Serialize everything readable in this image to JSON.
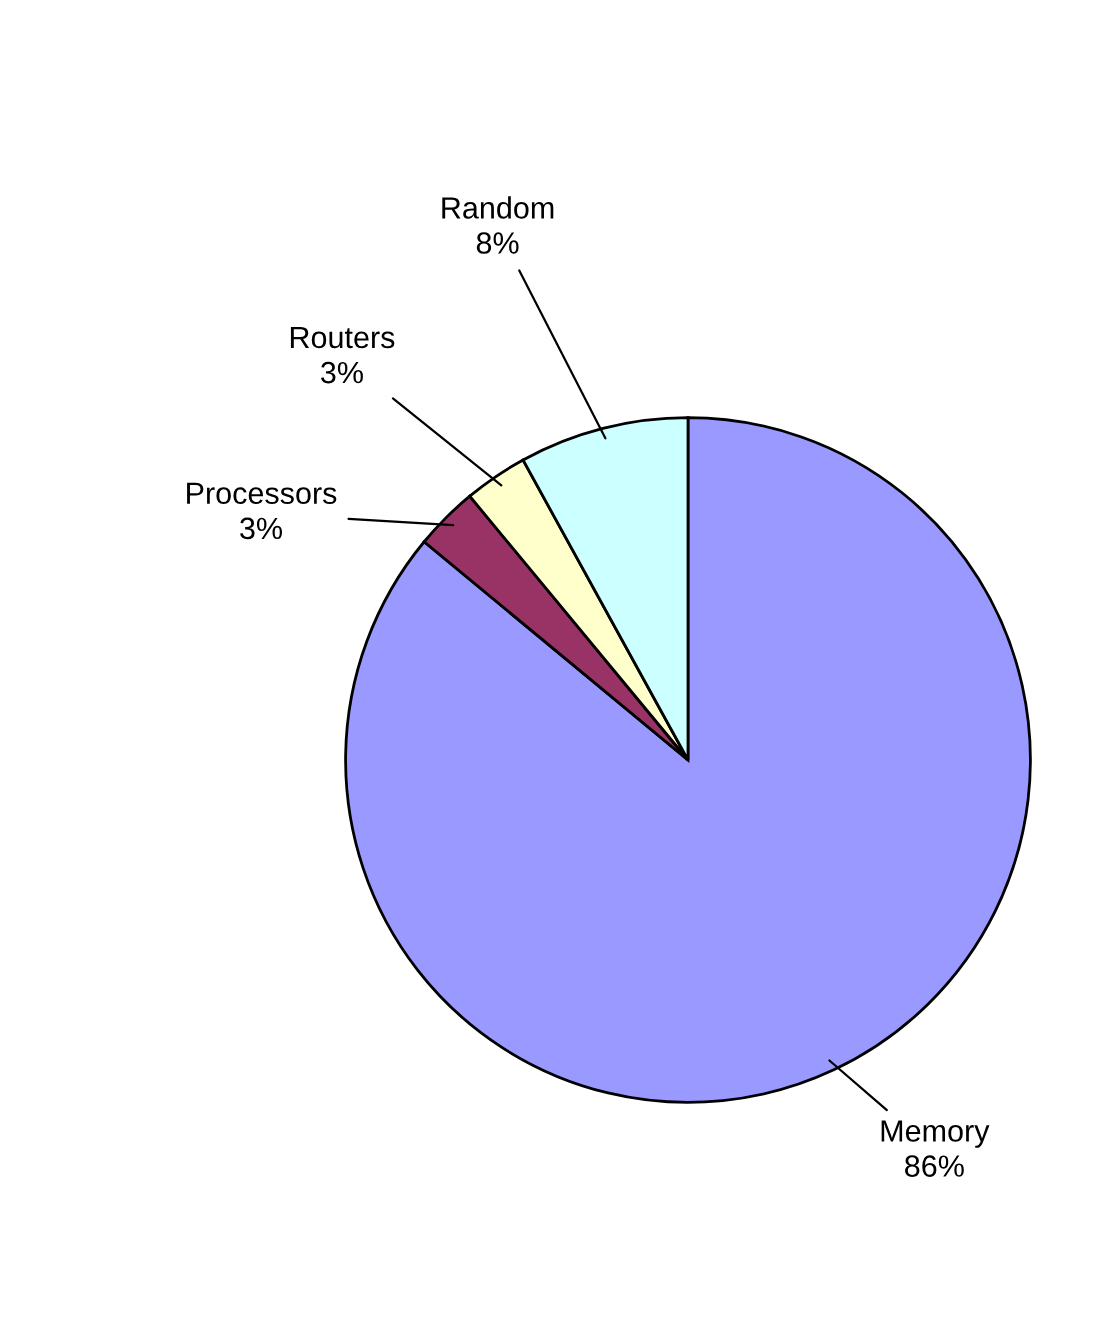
{
  "chart_data": {
    "type": "pie",
    "categories": [
      "Memory",
      "Processors",
      "Routers",
      "Random"
    ],
    "values": [
      86,
      3,
      3,
      8
    ],
    "value_labels": [
      "86%",
      "3%",
      "3%",
      "8%"
    ],
    "colors": [
      "#9999ff",
      "#993366",
      "#ffffcc",
      "#ccffff"
    ]
  }
}
